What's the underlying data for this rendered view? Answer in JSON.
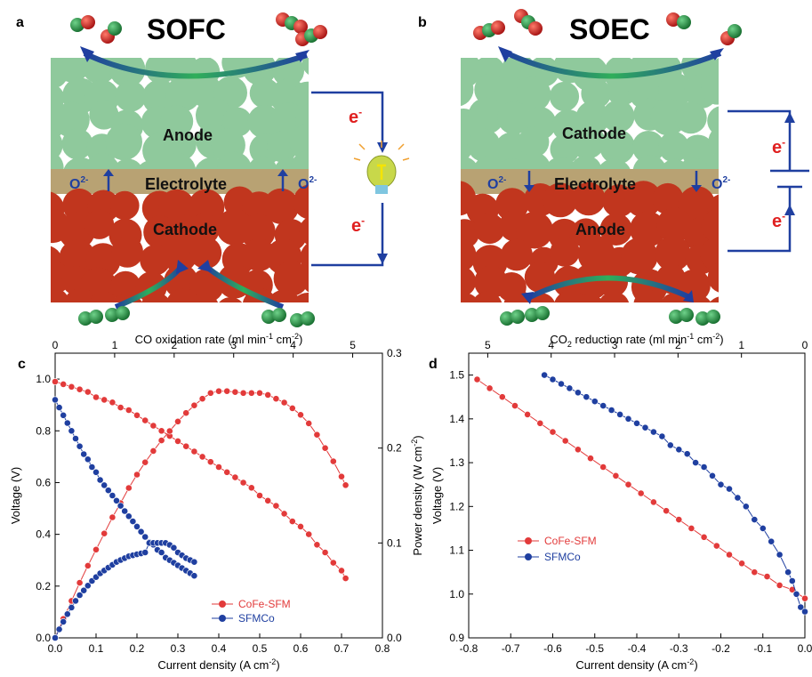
{
  "schematic": {
    "a": {
      "letter": "a",
      "title": "SOFC",
      "top_layer": "Anode",
      "middle_layer": "Electrolyte",
      "bottom_layer": "Cathode",
      "ion_left": "O",
      "ion_right": "O",
      "ion_sup": "2-",
      "electron": "e",
      "electron_sup": "-"
    },
    "b": {
      "letter": "b",
      "title": "SOEC",
      "top_layer": "Cathode",
      "middle_layer": "Electrolyte",
      "bottom_layer": "Anode",
      "ion_left": "O",
      "ion_right": "O",
      "ion_sup": "2-",
      "electron": "e",
      "electron_sup": "-"
    },
    "colors": {
      "green_layer": "#a8d5b0",
      "green_particle": "#8fc99c",
      "electrolyte": "#b8a273",
      "red_layer": "#c1361e",
      "arrow_blue": "#1f3fa0",
      "molecule_green": "#1f8a3a",
      "molecule_red": "#d11e1e"
    }
  },
  "chart_data": [
    {
      "panel": "c",
      "type": "scatter",
      "top_axis_label": "CO oxidation rate (ml min",
      "top_axis_sup": "-1",
      "top_axis_mid": " cm",
      "top_axis_sup2": "-2",
      "top_axis_end": ")",
      "top_ticks": [
        "0",
        "1",
        "2",
        "3",
        "4",
        "5"
      ],
      "xlabel": "Current density (A cm",
      "xlabel_sup": "-2",
      "xlabel_end": ")",
      "ylabel": "Voltage (V)",
      "y2label": "Power density (W cm",
      "y2label_sup": "-2",
      "y2label_end": ")",
      "xlim": [
        0,
        0.8
      ],
      "ylim": [
        0,
        1.1
      ],
      "y2lim": [
        0,
        0.3
      ],
      "top_xlim": [
        0,
        5.5
      ],
      "x_ticks": [
        "0.0",
        "0.1",
        "0.2",
        "0.3",
        "0.4",
        "0.5",
        "0.6",
        "0.7",
        "0.8"
      ],
      "y_ticks": [
        "0.0",
        "0.2",
        "0.4",
        "0.6",
        "0.8",
        "1.0"
      ],
      "y2_ticks": [
        "0.0",
        "0.1",
        "0.2",
        "0.3"
      ],
      "legend": [
        "CoFe-SFM",
        "SFMCo"
      ],
      "series": [
        {
          "name": "CoFe-SFM",
          "color": "#e23a3a",
          "axis": "voltage",
          "points": [
            [
              0,
              0.99
            ],
            [
              0.02,
              0.98
            ],
            [
              0.04,
              0.97
            ],
            [
              0.06,
              0.96
            ],
            [
              0.08,
              0.95
            ],
            [
              0.1,
              0.93
            ],
            [
              0.12,
              0.92
            ],
            [
              0.14,
              0.91
            ],
            [
              0.16,
              0.89
            ],
            [
              0.18,
              0.88
            ],
            [
              0.2,
              0.86
            ],
            [
              0.22,
              0.84
            ],
            [
              0.24,
              0.82
            ],
            [
              0.26,
              0.8
            ],
            [
              0.28,
              0.78
            ],
            [
              0.3,
              0.76
            ],
            [
              0.32,
              0.74
            ],
            [
              0.34,
              0.72
            ],
            [
              0.36,
              0.7
            ],
            [
              0.38,
              0.68
            ],
            [
              0.4,
              0.66
            ],
            [
              0.42,
              0.64
            ],
            [
              0.44,
              0.62
            ],
            [
              0.46,
              0.6
            ],
            [
              0.48,
              0.58
            ],
            [
              0.5,
              0.55
            ],
            [
              0.52,
              0.53
            ],
            [
              0.54,
              0.51
            ],
            [
              0.56,
              0.48
            ],
            [
              0.58,
              0.45
            ],
            [
              0.6,
              0.43
            ],
            [
              0.62,
              0.4
            ],
            [
              0.64,
              0.36
            ],
            [
              0.66,
              0.33
            ],
            [
              0.68,
              0.29
            ],
            [
              0.7,
              0.26
            ],
            [
              0.71,
              0.23
            ]
          ]
        },
        {
          "name": "CoFe-SFM",
          "color": "#e23a3a",
          "axis": "power",
          "points": [
            [
              0,
              0
            ],
            [
              0.02,
              0.02
            ],
            [
              0.04,
              0.039
            ],
            [
              0.06,
              0.058
            ],
            [
              0.08,
              0.076
            ],
            [
              0.1,
              0.093
            ],
            [
              0.12,
              0.11
            ],
            [
              0.14,
              0.127
            ],
            [
              0.16,
              0.142
            ],
            [
              0.18,
              0.158
            ],
            [
              0.2,
              0.172
            ],
            [
              0.22,
              0.185
            ],
            [
              0.24,
              0.197
            ],
            [
              0.26,
              0.208
            ],
            [
              0.28,
              0.218
            ],
            [
              0.3,
              0.228
            ],
            [
              0.32,
              0.237
            ],
            [
              0.34,
              0.245
            ],
            [
              0.36,
              0.252
            ],
            [
              0.38,
              0.258
            ],
            [
              0.4,
              0.26
            ],
            [
              0.42,
              0.26
            ],
            [
              0.44,
              0.259
            ],
            [
              0.46,
              0.258
            ],
            [
              0.48,
              0.258
            ],
            [
              0.5,
              0.258
            ],
            [
              0.52,
              0.256
            ],
            [
              0.54,
              0.252
            ],
            [
              0.56,
              0.248
            ],
            [
              0.58,
              0.242
            ],
            [
              0.6,
              0.235
            ],
            [
              0.62,
              0.226
            ],
            [
              0.64,
              0.214
            ],
            [
              0.66,
              0.2
            ],
            [
              0.68,
              0.186
            ],
            [
              0.7,
              0.17
            ],
            [
              0.71,
              0.161
            ]
          ]
        },
        {
          "name": "SFMCo",
          "color": "#1f3fa0",
          "axis": "voltage",
          "points": [
            [
              0,
              0.92
            ],
            [
              0.01,
              0.89
            ],
            [
              0.02,
              0.86
            ],
            [
              0.03,
              0.83
            ],
            [
              0.04,
              0.8
            ],
            [
              0.05,
              0.77
            ],
            [
              0.06,
              0.74
            ],
            [
              0.07,
              0.71
            ],
            [
              0.08,
              0.69
            ],
            [
              0.09,
              0.66
            ],
            [
              0.1,
              0.64
            ],
            [
              0.11,
              0.61
            ],
            [
              0.12,
              0.59
            ],
            [
              0.13,
              0.57
            ],
            [
              0.14,
              0.55
            ],
            [
              0.15,
              0.53
            ],
            [
              0.16,
              0.51
            ],
            [
              0.17,
              0.49
            ],
            [
              0.18,
              0.47
            ],
            [
              0.19,
              0.45
            ],
            [
              0.2,
              0.43
            ],
            [
              0.21,
              0.41
            ],
            [
              0.22,
              0.39
            ],
            [
              0.23,
              0.37
            ],
            [
              0.24,
              0.36
            ],
            [
              0.25,
              0.34
            ],
            [
              0.26,
              0.33
            ],
            [
              0.27,
              0.31
            ],
            [
              0.28,
              0.3
            ],
            [
              0.29,
              0.29
            ],
            [
              0.3,
              0.28
            ],
            [
              0.31,
              0.27
            ],
            [
              0.32,
              0.26
            ],
            [
              0.33,
              0.25
            ],
            [
              0.34,
              0.24
            ]
          ]
        },
        {
          "name": "SFMCo",
          "color": "#1f3fa0",
          "axis": "power",
          "points": [
            [
              0,
              0
            ],
            [
              0.01,
              0.009
            ],
            [
              0.02,
              0.017
            ],
            [
              0.03,
              0.025
            ],
            [
              0.04,
              0.032
            ],
            [
              0.05,
              0.039
            ],
            [
              0.06,
              0.045
            ],
            [
              0.07,
              0.05
            ],
            [
              0.08,
              0.055
            ],
            [
              0.09,
              0.06
            ],
            [
              0.1,
              0.064
            ],
            [
              0.11,
              0.068
            ],
            [
              0.12,
              0.071
            ],
            [
              0.13,
              0.074
            ],
            [
              0.14,
              0.077
            ],
            [
              0.15,
              0.08
            ],
            [
              0.16,
              0.082
            ],
            [
              0.17,
              0.084
            ],
            [
              0.18,
              0.086
            ],
            [
              0.19,
              0.087
            ],
            [
              0.2,
              0.088
            ],
            [
              0.21,
              0.089
            ],
            [
              0.22,
              0.09
            ],
            [
              0.23,
              0.1
            ],
            [
              0.24,
              0.1
            ],
            [
              0.25,
              0.1
            ],
            [
              0.26,
              0.1
            ],
            [
              0.27,
              0.1
            ],
            [
              0.28,
              0.098
            ],
            [
              0.29,
              0.095
            ],
            [
              0.3,
              0.09
            ],
            [
              0.31,
              0.087
            ],
            [
              0.32,
              0.084
            ],
            [
              0.33,
              0.082
            ],
            [
              0.34,
              0.08
            ]
          ]
        }
      ]
    },
    {
      "panel": "d",
      "type": "scatter",
      "top_axis_label_pre": "CO",
      "top_axis_label_sub": "2",
      "top_axis_label": " reduction rate (ml min",
      "top_axis_sup": "-1",
      "top_axis_mid": " cm",
      "top_axis_sup2": "-2",
      "top_axis_end": ")",
      "top_ticks": [
        "5",
        "4",
        "3",
        "2",
        "1",
        "0"
      ],
      "xlabel": "Current density (A cm",
      "xlabel_sup": "-2",
      "xlabel_end": ")",
      "ylabel": "Voltage (V)",
      "xlim": [
        -0.8,
        0.0
      ],
      "ylim": [
        0.9,
        1.55
      ],
      "top_xlim": [
        5.3,
        0
      ],
      "x_ticks": [
        "-0.8",
        "-0.7",
        "-0.6",
        "-0.5",
        "-0.4",
        "-0.3",
        "-0.2",
        "-0.1",
        "0.0"
      ],
      "y_ticks": [
        "0.9",
        "1.0",
        "1.1",
        "1.2",
        "1.3",
        "1.4",
        "1.5"
      ],
      "legend": [
        "CoFe-SFM",
        "SFMCo"
      ],
      "series": [
        {
          "name": "CoFe-SFM",
          "color": "#e23a3a",
          "points": [
            [
              -0.78,
              1.49
            ],
            [
              -0.75,
              1.47
            ],
            [
              -0.72,
              1.45
            ],
            [
              -0.69,
              1.43
            ],
            [
              -0.66,
              1.41
            ],
            [
              -0.63,
              1.39
            ],
            [
              -0.6,
              1.37
            ],
            [
              -0.57,
              1.35
            ],
            [
              -0.54,
              1.33
            ],
            [
              -0.51,
              1.31
            ],
            [
              -0.48,
              1.29
            ],
            [
              -0.45,
              1.27
            ],
            [
              -0.42,
              1.25
            ],
            [
              -0.39,
              1.23
            ],
            [
              -0.36,
              1.21
            ],
            [
              -0.33,
              1.19
            ],
            [
              -0.3,
              1.17
            ],
            [
              -0.27,
              1.15
            ],
            [
              -0.24,
              1.13
            ],
            [
              -0.21,
              1.11
            ],
            [
              -0.18,
              1.09
            ],
            [
              -0.15,
              1.07
            ],
            [
              -0.12,
              1.05
            ],
            [
              -0.09,
              1.04
            ],
            [
              -0.06,
              1.02
            ],
            [
              -0.03,
              1.01
            ],
            [
              0,
              0.99
            ]
          ]
        },
        {
          "name": "SFMCo",
          "color": "#1f3fa0",
          "points": [
            [
              -0.62,
              1.5
            ],
            [
              -0.6,
              1.49
            ],
            [
              -0.58,
              1.48
            ],
            [
              -0.56,
              1.47
            ],
            [
              -0.54,
              1.46
            ],
            [
              -0.52,
              1.45
            ],
            [
              -0.5,
              1.44
            ],
            [
              -0.48,
              1.43
            ],
            [
              -0.46,
              1.42
            ],
            [
              -0.44,
              1.41
            ],
            [
              -0.42,
              1.4
            ],
            [
              -0.4,
              1.39
            ],
            [
              -0.38,
              1.38
            ],
            [
              -0.36,
              1.37
            ],
            [
              -0.34,
              1.36
            ],
            [
              -0.32,
              1.34
            ],
            [
              -0.3,
              1.33
            ],
            [
              -0.28,
              1.32
            ],
            [
              -0.26,
              1.3
            ],
            [
              -0.24,
              1.29
            ],
            [
              -0.22,
              1.27
            ],
            [
              -0.2,
              1.25
            ],
            [
              -0.18,
              1.24
            ],
            [
              -0.16,
              1.22
            ],
            [
              -0.14,
              1.2
            ],
            [
              -0.12,
              1.17
            ],
            [
              -0.1,
              1.15
            ],
            [
              -0.08,
              1.12
            ],
            [
              -0.06,
              1.09
            ],
            [
              -0.04,
              1.05
            ],
            [
              -0.03,
              1.03
            ],
            [
              -0.02,
              1.0
            ],
            [
              -0.01,
              0.97
            ],
            [
              0,
              0.96
            ]
          ]
        }
      ]
    }
  ]
}
